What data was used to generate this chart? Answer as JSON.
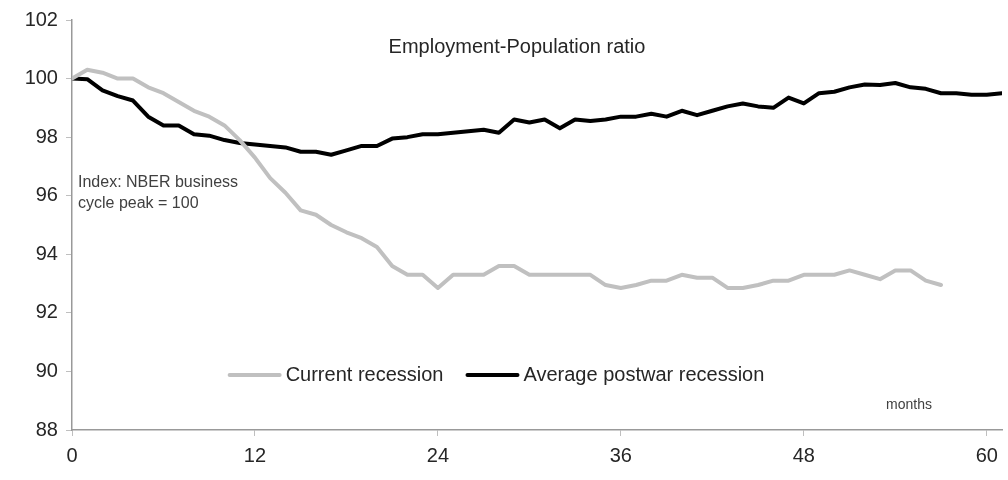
{
  "chart_data": {
    "type": "line",
    "title": "Employment-Population ratio",
    "x": [
      0,
      1,
      2,
      3,
      4,
      5,
      6,
      7,
      8,
      9,
      10,
      11,
      12,
      13,
      14,
      15,
      16,
      17,
      18,
      19,
      20,
      21,
      22,
      23,
      24,
      25,
      26,
      27,
      28,
      29,
      30,
      31,
      32,
      33,
      34,
      35,
      36,
      37,
      38,
      39,
      40,
      41,
      42,
      43,
      44,
      45,
      46,
      47,
      48,
      49,
      50,
      51,
      52,
      53,
      54,
      55,
      56,
      57,
      58,
      59,
      60,
      61
    ],
    "series": [
      {
        "name": "Current recession",
        "color": "#c0c0c0",
        "values": [
          100,
          100.3,
          100.2,
          100.0,
          100.0,
          99.7,
          99.5,
          99.2,
          98.9,
          98.7,
          98.4,
          97.9,
          97.3,
          96.6,
          96.1,
          95.5,
          95.35,
          95.0,
          94.75,
          94.55,
          94.25,
          93.6,
          93.3,
          93.3,
          92.85,
          93.3,
          93.3,
          93.3,
          93.6,
          93.6,
          93.3,
          93.3,
          93.3,
          93.3,
          93.3,
          92.95,
          92.85,
          92.95,
          93.1,
          93.1,
          93.3,
          93.2,
          93.2,
          92.85,
          92.85,
          92.95,
          93.1,
          93.1,
          93.3,
          93.3,
          93.3,
          93.45,
          93.3,
          93.15,
          93.45,
          93.45,
          93.1,
          92.95,
          null,
          null,
          null,
          null
        ]
      },
      {
        "name": "Average postwar recession",
        "color": "#000000",
        "values": [
          100,
          99.98,
          99.6,
          99.4,
          99.25,
          98.7,
          98.4,
          98.4,
          98.1,
          98.05,
          97.9,
          97.8,
          97.75,
          97.7,
          97.65,
          97.5,
          97.5,
          97.4,
          97.55,
          97.7,
          97.7,
          97.95,
          98.0,
          98.1,
          98.1,
          98.15,
          98.2,
          98.25,
          98.15,
          98.6,
          98.5,
          98.6,
          98.3,
          98.6,
          98.55,
          98.6,
          98.7,
          98.7,
          98.8,
          98.7,
          98.9,
          98.75,
          98.9,
          99.05,
          99.15,
          99.05,
          99.0,
          99.35,
          99.15,
          99.5,
          99.55,
          99.7,
          99.8,
          99.78,
          99.85,
          99.7,
          99.65,
          99.5,
          99.5,
          99.45,
          99.45,
          99.5
        ]
      }
    ],
    "annotations": [
      "Index: NBER business cycle peak = 100",
      "months"
    ],
    "xlim": [
      0,
      61
    ],
    "xticks": [
      0,
      12,
      24,
      36,
      48,
      60
    ],
    "ylim": [
      88,
      102
    ],
    "yticks": [
      88,
      90,
      92,
      94,
      96,
      98,
      100,
      102
    ],
    "grid": false,
    "legend": "bottom",
    "marker": "none",
    "line_style": "solid"
  }
}
